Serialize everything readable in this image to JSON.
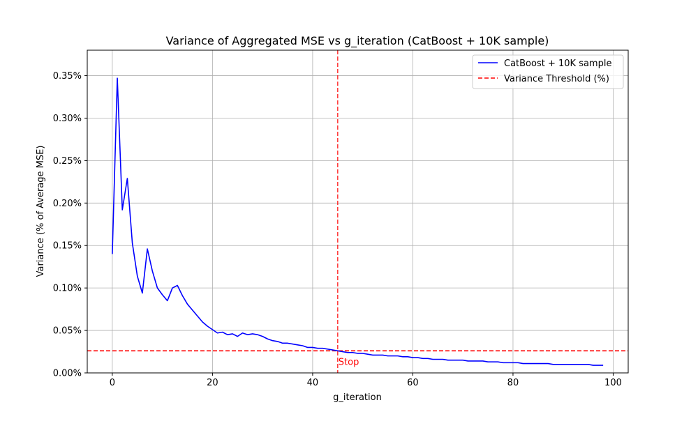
{
  "chart_data": {
    "type": "line",
    "title": "Variance of Aggregated MSE vs g_iteration (CatBoost + 10K sample)",
    "xlabel": "g_iteration",
    "ylabel": "Variance (% of Average MSE)",
    "xlim": [
      -5,
      103
    ],
    "ylim": [
      0,
      0.38
    ],
    "xticks": [
      0,
      20,
      40,
      60,
      80,
      100
    ],
    "yticks": [
      0,
      0.05,
      0.1,
      0.15,
      0.2,
      0.25,
      0.3,
      0.35
    ],
    "ytick_labels": [
      "0.00%",
      "0.05%",
      "0.10%",
      "0.15%",
      "0.20%",
      "0.25%",
      "0.30%",
      "0.35%"
    ],
    "grid": true,
    "legend_position": "top-right",
    "series": [
      {
        "name": "CatBoost + 10K sample",
        "color": "#0000ff",
        "style": "solid",
        "x": [
          0,
          1,
          2,
          3,
          4,
          5,
          6,
          7,
          8,
          9,
          10,
          11,
          12,
          13,
          14,
          15,
          16,
          17,
          18,
          19,
          20,
          21,
          22,
          23,
          24,
          25,
          26,
          27,
          28,
          29,
          30,
          31,
          32,
          33,
          34,
          35,
          36,
          37,
          38,
          39,
          40,
          41,
          42,
          43,
          44,
          45,
          46,
          47,
          48,
          49,
          50,
          51,
          52,
          53,
          54,
          55,
          56,
          57,
          58,
          59,
          60,
          61,
          62,
          63,
          64,
          65,
          66,
          67,
          68,
          69,
          70,
          71,
          72,
          73,
          74,
          75,
          76,
          77,
          78,
          79,
          80,
          81,
          82,
          83,
          84,
          85,
          86,
          87,
          88,
          89,
          90,
          91,
          92,
          93,
          94,
          95,
          96,
          97,
          98
        ],
        "y": [
          0.14,
          0.347,
          0.192,
          0.229,
          0.153,
          0.114,
          0.094,
          0.146,
          0.12,
          0.1,
          0.092,
          0.085,
          0.1,
          0.103,
          0.091,
          0.081,
          0.074,
          0.067,
          0.06,
          0.055,
          0.051,
          0.047,
          0.048,
          0.045,
          0.046,
          0.043,
          0.047,
          0.045,
          0.046,
          0.045,
          0.043,
          0.04,
          0.038,
          0.037,
          0.035,
          0.035,
          0.034,
          0.033,
          0.032,
          0.03,
          0.03,
          0.029,
          0.029,
          0.028,
          0.027,
          0.026,
          0.025,
          0.024,
          0.024,
          0.023,
          0.023,
          0.022,
          0.021,
          0.021,
          0.021,
          0.02,
          0.02,
          0.02,
          0.019,
          0.019,
          0.018,
          0.018,
          0.017,
          0.017,
          0.016,
          0.016,
          0.016,
          0.015,
          0.015,
          0.015,
          0.015,
          0.014,
          0.014,
          0.014,
          0.014,
          0.013,
          0.013,
          0.013,
          0.012,
          0.012,
          0.012,
          0.012,
          0.011,
          0.011,
          0.011,
          0.011,
          0.011,
          0.011,
          0.01,
          0.01,
          0.01,
          0.01,
          0.01,
          0.01,
          0.01,
          0.01,
          0.009,
          0.009,
          0.009
        ]
      },
      {
        "name": "Variance Threshold (%)",
        "color": "#ff0000",
        "style": "dashed",
        "y_constant": 0.026
      }
    ],
    "annotations": [
      {
        "text": "Stop",
        "x": 45,
        "color": "#ff0000"
      }
    ],
    "stop_line": {
      "x": 45,
      "color": "#ff0000"
    }
  }
}
